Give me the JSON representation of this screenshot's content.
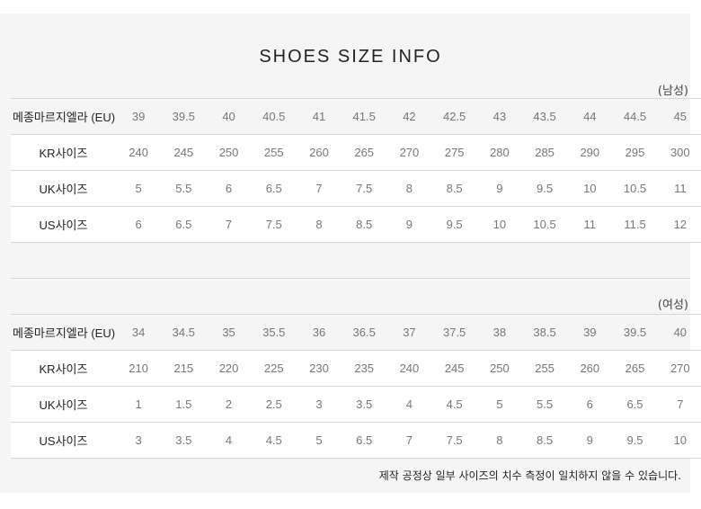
{
  "title": "SHOES SIZE INFO",
  "men": {
    "gender_label": "(남성)",
    "rows": [
      {
        "label": "메종마르지엘라 (EU)",
        "values": [
          "39",
          "39.5",
          "40",
          "40.5",
          "41",
          "41.5",
          "42",
          "42.5",
          "43",
          "43.5",
          "44",
          "44.5",
          "45"
        ]
      },
      {
        "label": "KR사이즈",
        "values": [
          "240",
          "245",
          "250",
          "255",
          "260",
          "265",
          "270",
          "275",
          "280",
          "285",
          "290",
          "295",
          "300"
        ]
      },
      {
        "label": "UK사이즈",
        "values": [
          "5",
          "5.5",
          "6",
          "6.5",
          "7",
          "7.5",
          "8",
          "8.5",
          "9",
          "9.5",
          "10",
          "10.5",
          "11"
        ]
      },
      {
        "label": "US사이즈",
        "values": [
          "6",
          "6.5",
          "7",
          "7.5",
          "8",
          "8.5",
          "9",
          "9.5",
          "10",
          "10.5",
          "11",
          "11.5",
          "12"
        ]
      }
    ]
  },
  "women": {
    "gender_label": "(여성)",
    "rows": [
      {
        "label": "메종마르지엘라 (EU)",
        "values": [
          "34",
          "34.5",
          "35",
          "35.5",
          "36",
          "36.5",
          "37",
          "37.5",
          "38",
          "38.5",
          "39",
          "39.5",
          "40"
        ]
      },
      {
        "label": "KR사이즈",
        "values": [
          "210",
          "215",
          "220",
          "225",
          "230",
          "235",
          "240",
          "245",
          "250",
          "255",
          "260",
          "265",
          "270"
        ]
      },
      {
        "label": "UK사이즈",
        "values": [
          "1",
          "1.5",
          "2",
          "2.5",
          "3",
          "3.5",
          "4",
          "4.5",
          "5",
          "5.5",
          "6",
          "6.5",
          "7"
        ]
      },
      {
        "label": "US사이즈",
        "values": [
          "3",
          "3.5",
          "4",
          "4.5",
          "5",
          "6.5",
          "7",
          "7.5",
          "8",
          "8.5",
          "9",
          "9.5",
          "10"
        ]
      }
    ]
  },
  "note": "제작 공정상 일부 사이즈의 치수 측정이 일치하지 않을 수 있습니다."
}
